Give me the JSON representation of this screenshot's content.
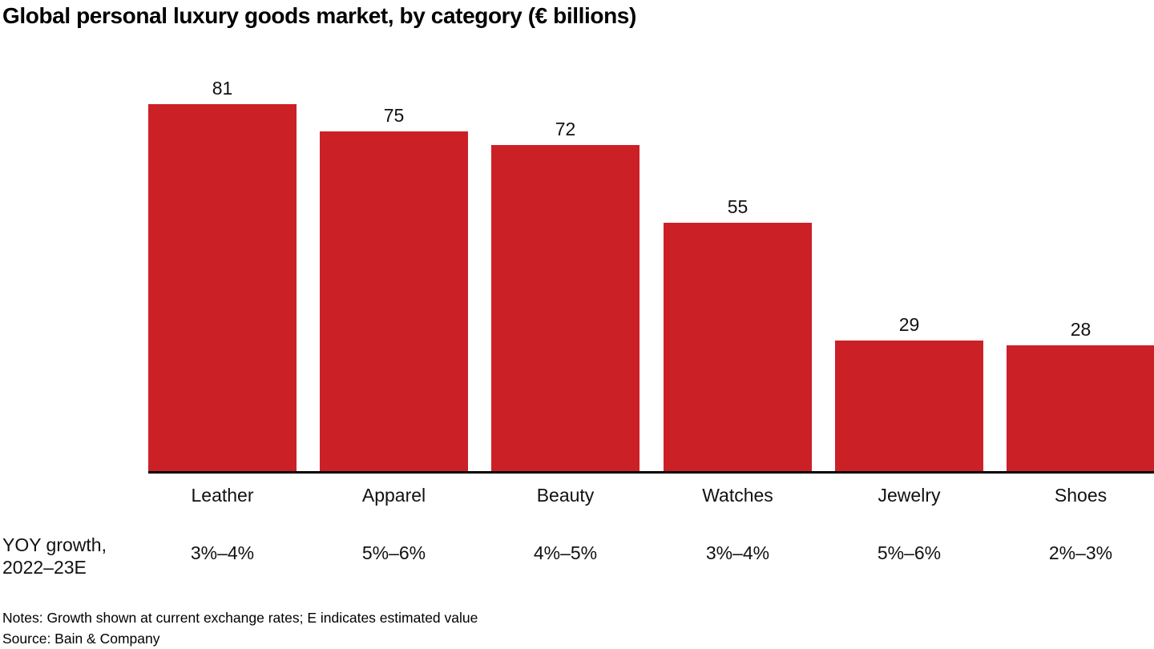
{
  "title": "Global personal luxury goods market, by category (€ billions)",
  "chart_data": {
    "type": "bar",
    "title": "Global personal luxury goods market, by category (€ billions)",
    "categories": [
      "Leather",
      "Apparel",
      "Beauty",
      "Watches",
      "Jewelry",
      "Shoes"
    ],
    "values": [
      81,
      75,
      72,
      55,
      29,
      28
    ],
    "value_unit": "€ billions",
    "bar_color": "#cc2027",
    "ylim": [
      0,
      81
    ],
    "grid": false,
    "legend": false,
    "y_axis_shown": false,
    "growth_row": {
      "label_line1": "YOY growth,",
      "label_line2": "2022–23E",
      "values": [
        "3%–4%",
        "5%–6%",
        "4%–5%",
        "3%–4%",
        "5%–6%",
        "2%–3%"
      ]
    }
  },
  "footer": {
    "notes": "Notes: Growth shown at current exchange rates; E indicates estimated value",
    "source": "Source: Bain & Company"
  }
}
